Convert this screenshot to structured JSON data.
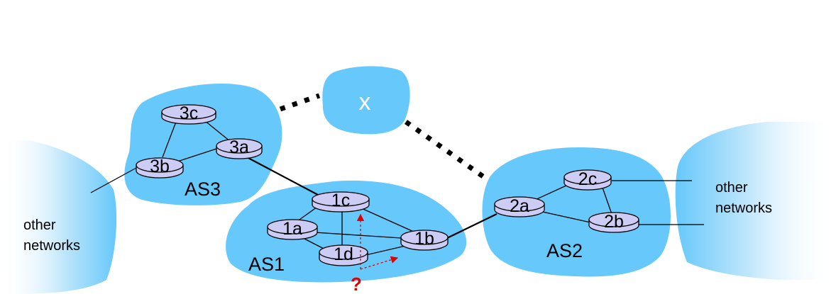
{
  "colors": {
    "cloud": "#66c8fb",
    "router_fill": "#ccccf4",
    "router_stroke": "#000000",
    "query": "#e00000",
    "x_text": "#ffffff"
  },
  "labels": {
    "as1": "AS1",
    "as2": "AS2",
    "as3": "AS3",
    "x": "x",
    "query_mark": "?",
    "other_left_1": "other",
    "other_left_2": "networks",
    "other_right_1": "other",
    "other_right_2": "networks"
  },
  "routers": {
    "r3c": "3c",
    "r3a": "3a",
    "r3b": "3b",
    "r1c": "1c",
    "r1a": "1a",
    "r1b": "1b",
    "r1d": "1d",
    "r2a": "2a",
    "r2c": "2c",
    "r2b": "2b"
  }
}
